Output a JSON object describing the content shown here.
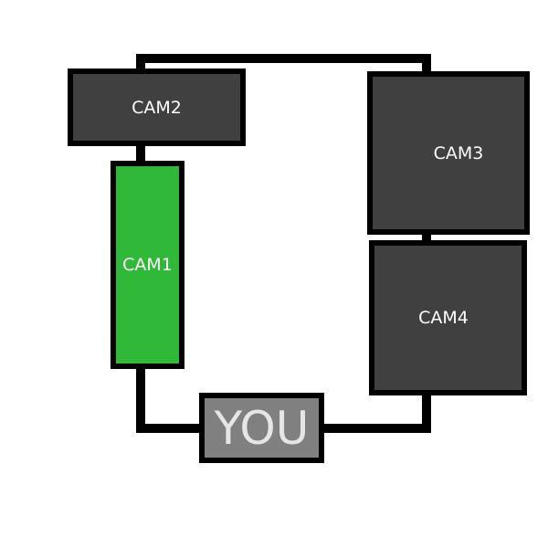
{
  "map": {
    "colors": {
      "camera_default": "#404040",
      "camera_active": "#30b838",
      "you_fill": "#808080",
      "you_text": "#e6e6e6",
      "wire": "#000000",
      "border": "#000000"
    },
    "cameras": {
      "cam1": {
        "label": "CAM1",
        "active": true
      },
      "cam2": {
        "label": "CAM2",
        "active": false
      },
      "cam3": {
        "label": "CAM3",
        "active": false
      },
      "cam4": {
        "label": "CAM4",
        "active": false
      }
    },
    "you": {
      "label": "YOU"
    }
  }
}
